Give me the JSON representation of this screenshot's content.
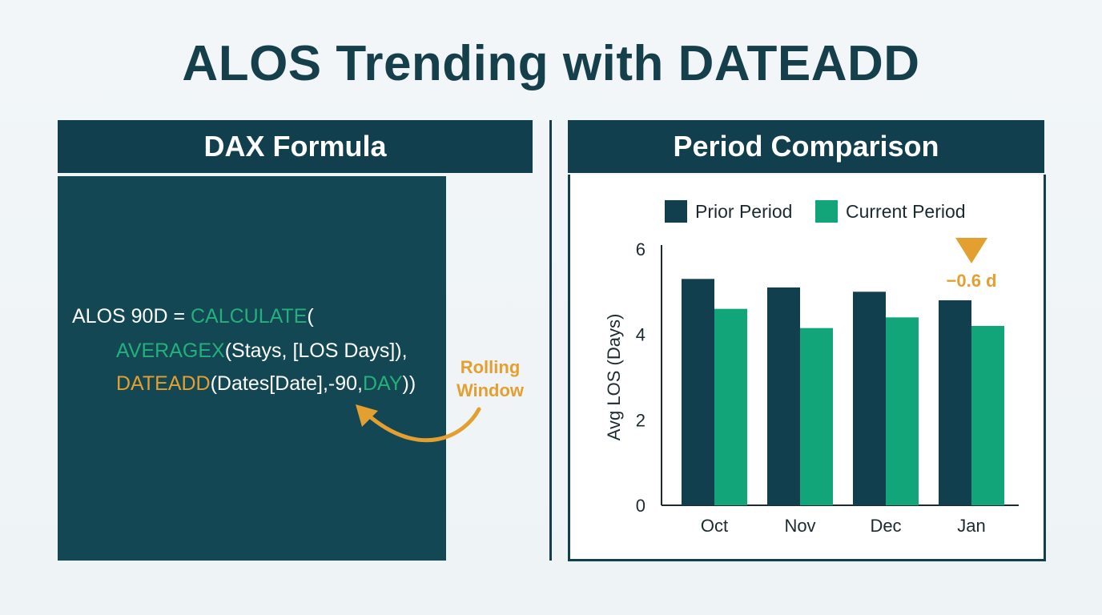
{
  "title": "ALOS Trending with DATEADD",
  "left_panel": {
    "header": "DAX Formula",
    "code": {
      "line1_prefix": "ALOS 90D = ",
      "line1_func": "CALCULATE",
      "line1_suffix": "(",
      "line2_func": "AVERAGEX",
      "line2_suffix": "(Stays, [LOS Days]),",
      "line3_func": "DATEADD",
      "line3_middle": "(Dates[Date],-90,",
      "line3_arg": "DAY",
      "line3_suffix": "))"
    },
    "annotation_line1": "Rolling",
    "annotation_line2": "Window"
  },
  "right_panel": {
    "header": "Period Comparison",
    "delta_label": "−0.6 d"
  },
  "colors": {
    "dark_teal": "#123f4d",
    "green": "#13a57a",
    "orange": "#e3a030"
  },
  "chart_data": {
    "type": "bar",
    "categories": [
      "Oct",
      "Nov",
      "Dec",
      "Jan"
    ],
    "series": [
      {
        "name": "Prior Period",
        "values": [
          5.3,
          5.1,
          5.0,
          4.8
        ],
        "color": "#123f4d"
      },
      {
        "name": "Current Period",
        "values": [
          4.6,
          4.15,
          4.4,
          4.2
        ],
        "color": "#13a57a"
      }
    ],
    "ylabel": "Avg LOS (Days)",
    "xlabel": "",
    "yticks": [
      0,
      2,
      4,
      6
    ],
    "ylim": [
      0,
      6
    ],
    "legend_position": "top",
    "grid": false
  }
}
